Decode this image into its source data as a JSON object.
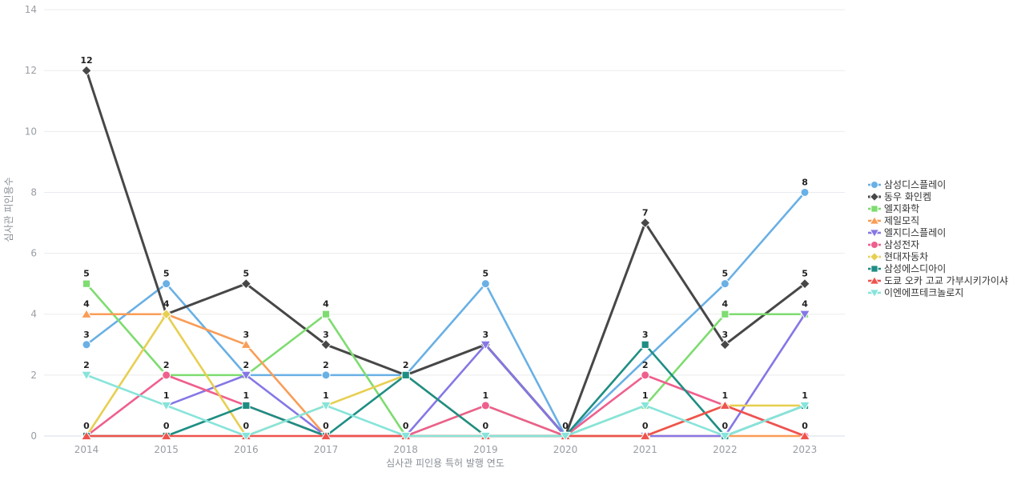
{
  "chart_data": {
    "type": "line",
    "title": "",
    "xlabel": "심사관 피인용 특허 발행 연도",
    "ylabel": "심사관 피인용수",
    "x": [
      2014,
      2015,
      2016,
      2017,
      2018,
      2019,
      2020,
      2021,
      2022,
      2023
    ],
    "ylim": [
      0,
      14
    ],
    "yticks": [
      0,
      2,
      4,
      6,
      8,
      10,
      12,
      14
    ],
    "grid": true,
    "legend_position": "right",
    "point_labels_shown": true,
    "series": [
      {
        "name": "삼성디스플레이",
        "color": "#69b0e5",
        "marker": "circle",
        "values": [
          3,
          5,
          2,
          2,
          2,
          5,
          0,
          null,
          5,
          8
        ]
      },
      {
        "name": "동우 화인켐",
        "color": "#474747",
        "marker": "diamond",
        "values": [
          12,
          4,
          5,
          3,
          2,
          3,
          0,
          7,
          3,
          5
        ]
      },
      {
        "name": "엘지화학",
        "color": "#7edc70",
        "marker": "square",
        "values": [
          5,
          2,
          2,
          4,
          0,
          1,
          0,
          1,
          4,
          4
        ]
      },
      {
        "name": "제일모직",
        "color": "#f99d57",
        "marker": "triangle-up",
        "values": [
          4,
          4,
          3,
          0,
          0,
          0,
          0,
          0,
          0,
          0
        ]
      },
      {
        "name": "엘지디스플레이",
        "color": "#8577e6",
        "marker": "triangle-down",
        "values": [
          null,
          1,
          2,
          0,
          0,
          3,
          0,
          0,
          0,
          4
        ]
      },
      {
        "name": "삼성전자",
        "color": "#ef5f8d",
        "marker": "circle",
        "values": [
          0,
          2,
          1,
          0,
          0,
          1,
          0,
          2,
          1,
          0
        ]
      },
      {
        "name": "현대자동차",
        "color": "#e7cf52",
        "marker": "diamond",
        "values": [
          0,
          4,
          0,
          1,
          2,
          0,
          0,
          0,
          1,
          1
        ]
      },
      {
        "name": "삼성에스디아이",
        "color": "#1e8e84",
        "marker": "square",
        "values": [
          0,
          0,
          1,
          0,
          2,
          0,
          0,
          3,
          0,
          1
        ]
      },
      {
        "name": "도쿄 오카 고교 가부시키가이샤",
        "color": "#ef534e",
        "marker": "triangle-up",
        "values": [
          0,
          0,
          0,
          0,
          0,
          0,
          0,
          0,
          1,
          0
        ]
      },
      {
        "name": "이엔에프테크놀로지",
        "color": "#87e4da",
        "marker": "triangle-down",
        "values": [
          2,
          1,
          0,
          1,
          0,
          0,
          0,
          1,
          0,
          1
        ]
      }
    ]
  },
  "colors": {
    "background": "#ffffff",
    "gridline": "#eaebee",
    "axis_line": "#d5dbe5",
    "tick_label": "#999da3",
    "axis_title": "#8a8f96",
    "point_label": "#222222",
    "legend_text": "#333333"
  }
}
